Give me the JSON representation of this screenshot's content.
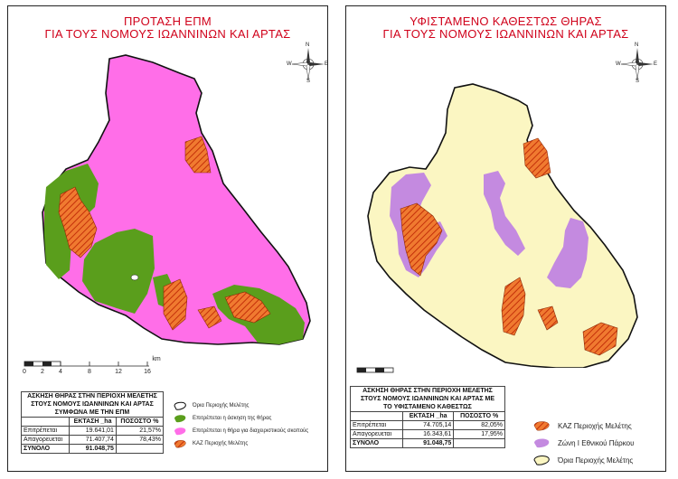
{
  "left": {
    "title_line1": "ΠΡΟΤΑΣΗ ΕΠΜ",
    "title_line2": "ΓΙΑ ΤΟΥΣ ΝΟΜΟΥΣ ΙΩΑΝΝΙΝΩΝ ΚΑΙ ΑΡΤΑΣ",
    "table_title_1": "ΑΣΚΗΣΗ ΘΗΡΑΣ ΣΤΗΝ ΠΕΡΙΟΧΗ ΜΕΛΕΤΗΣ",
    "table_title_2": "ΣΤΟΥΣ ΝΟΜΟΥΣ ΙΩΑΝΝΙΝΩΝ ΚΑΙ ΑΡΤΑΣ",
    "table_title_3": "ΣΥΜΦΩΝΑ ΜΕ ΤΗΝ ΕΠΜ",
    "col_area": "ΕΚΤΑΣΗ _ha",
    "col_pct": "ΠΟΣΟΣΤΟ %",
    "rows": [
      {
        "label": "Επιτρέπεται",
        "area": "19.641,01",
        "pct": "21,57%"
      },
      {
        "label": "Απαγορευεται",
        "area": "71.407,74",
        "pct": "78,43%"
      }
    ],
    "total_label": "ΣΥΝΟΛΟ",
    "total_area": "91.048,75",
    "legend": [
      {
        "label": "Όρια Περιοχής Μελέτης",
        "color": "#ffffff"
      },
      {
        "label": "Επιτρέπεται η άσκηση της θήρας",
        "color": "#5a9e1c"
      },
      {
        "label": "Επιτρέπεται η θήρα για διαχειριστικούς σκοπούς",
        "color": "#ff6ee8"
      },
      {
        "label": "ΚΑΖ Περιοχής Μελέτης",
        "color": "#e8531a"
      }
    ]
  },
  "right": {
    "title_line1": "ΥΦΙΣΤΑΜΕΝΟ ΚΑΘΕΣΤΩΣ ΘΗΡΑΣ",
    "title_line2": "ΓΙΑ ΤΟΥΣ ΝΟΜΟΥΣ ΙΩΑΝΝΙΝΩΝ ΚΑΙ ΑΡΤΑΣ",
    "table_title_1": "ΑΣΚΗΣΗ ΘΗΡΑΣ ΣΤΗΝ ΠΕΡΙΟΧΗ ΜΕΛΕΤΗΣ",
    "table_title_2": "ΣΤΟΥΣ ΝΟΜΟΥΣ ΙΩΑΝΝΙΝΩΝ ΚΑΙ ΑΡΤΑΣ ΜΕ",
    "table_title_3": "ΤΟ ΥΦΙΣΤΑΜΕΝΟ ΚΑΘΕΣΤΩΣ",
    "col_area": "ΕΚΤΑΣΗ _ha",
    "col_pct": "ΠΟΣΟΣΤΟ %",
    "rows": [
      {
        "label": "Επιτρέπεται",
        "area": "74.705,14",
        "pct": "82,05%"
      },
      {
        "label": "Απαγορευεται",
        "area": "16.343,61",
        "pct": "17,95%"
      }
    ],
    "total_label": "ΣΥΝΟΛΟ",
    "total_area": "91.048,75",
    "legend": [
      {
        "label": "ΚΑΖ Περιοχής Μελέτης",
        "color": "#e8531a"
      },
      {
        "label": "Ζώνη Ι Εθνικού Πάρκου",
        "color": "#c48ae0"
      },
      {
        "label": "Όρια Περιοχής Μελέτης",
        "color": "#fbf6c2"
      }
    ]
  },
  "scale_ticks": [
    "0",
    "2",
    "4",
    "8",
    "12",
    "16"
  ],
  "scale_unit": "km",
  "compass": {
    "n": "N",
    "s": "S",
    "e": "E",
    "w": "W"
  },
  "colors": {
    "title": "#d0021b",
    "magenta": "#ff6ee8",
    "green": "#5a9e1c",
    "orange": "#e8531a",
    "cream": "#fbf6c2",
    "purple": "#c48ae0"
  }
}
